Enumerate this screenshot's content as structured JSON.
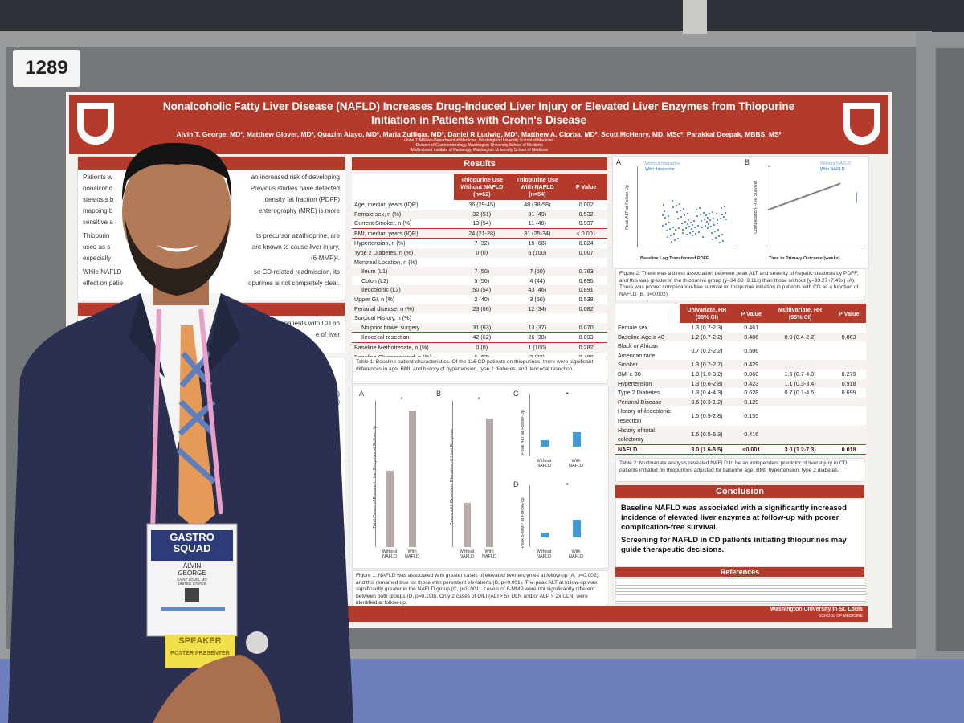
{
  "board_number": "1289",
  "poster": {
    "title": "Nonalcoholic Fatty Liver Disease (NAFLD) Increases Drug-Induced Liver Injury or Elevated Liver Enzymes from Thiopurine Initiation in Patients with Crohn's Disease",
    "authors": "Alvin T. George, MD¹, Matthew Glover, MD², Quazim Alayo, MD², Maria Zulfiqar, MD³, Daniel R Ludwig, MD³, Matthew A. Ciorba, MD², Scott McHenry, MD, MSc², Parakkal Deepak, MBBS, MS²",
    "affiliations": [
      "¹John T. Milliken Department of Medicine, Washington University School of Medicine",
      "²Division of Gastroenterology, Washington University School of Medicine",
      "³Mallinckrodt Institute of Radiology, Washington University School of Medicine"
    ],
    "intro": {
      "heading": "ction",
      "lines": [
        [
          "Patients w",
          "an increased risk of developing"
        ],
        [
          "nonalcoho",
          "Previous studies have detected"
        ],
        [
          "steatosis b",
          "density fat fraction (PDFF)"
        ],
        [
          "mapping b",
          "enterography (MRE) is more"
        ],
        [
          "sensitive a"
        ],
        [
          "Thiopurin",
          "ts precursor azathioprine, are"
        ],
        [
          "used as s",
          "are known to cause liver injury,"
        ],
        [
          "especially",
          "(6-MMP)²."
        ],
        [
          "While NAFLD",
          "se CD-related readmission, its"
        ],
        [
          "effect on patie",
          "opurines is not completely clear."
        ]
      ]
    },
    "aims": {
      "heading": "s",
      "lines": [
        "in patients with CD on",
        "e of liver"
      ]
    },
    "methods_fragments": [
      "(9)",
      "tis (4)",
      "follow-",
      "analyses,"
    ],
    "results_heading": "Results",
    "table1": {
      "header": [
        "Thiopurine Use Without NAFLD (n=62)",
        "Thiopurine Use With NAFLD (n=54)",
        "P Value"
      ],
      "rows": [
        [
          "Age, median years (IQR)",
          "36 (29-45)",
          "48 (38-58)",
          "0.002"
        ],
        [
          "Female sex, n (%)",
          "32 (51)",
          "31 (49)",
          "0.532"
        ],
        [
          "Current Smoker, n (%)",
          "13 (54)",
          "11 (46)",
          "0.937"
        ],
        [
          "BMI, median years (IQR)",
          "24 (21-28)",
          "31 (25-34)",
          "< 0.001"
        ],
        [
          "Hypertension, n (%)",
          "7 (32)",
          "15 (68)",
          "0.024"
        ],
        [
          "Type 2 Diabetes, n (%)",
          "0 (0)",
          "6 (100)",
          "0.007"
        ],
        [
          "Montreal Location, n (%)"
        ],
        [
          "Ileum (L1)",
          "7 (50)",
          "7 (50)",
          "0.783"
        ],
        [
          "Colon (L2)",
          "5 (56)",
          "4 (44)",
          "0.895"
        ],
        [
          "Ileocolonic (L3)",
          "50 (54)",
          "43 (46)",
          "0.891"
        ],
        [
          "Upper GI, n (%)",
          "2 (40)",
          "3 (60)",
          "0.538"
        ],
        [
          "Perianal disease, n (%)",
          "23 (66)",
          "12 (34)",
          "0.082"
        ],
        [
          "Surgical History, n (%)"
        ],
        [
          "No prior bowel surgery",
          "31 (63)",
          "13 (37)",
          "0.070"
        ],
        [
          "Ileocecal resection",
          "42 (62)",
          "26 (38)",
          "0.033"
        ],
        [
          "Baseline Methotrexate, n (%)",
          "0 (0)",
          "1 (100)",
          "0.282"
        ],
        [
          "Baseline Glucocorticoid, n (%)",
          "6 (67)",
          "3 (33)",
          "0.408"
        ]
      ],
      "caption": "Table 1: Baseline patient characteristics. Of the 116 CD patients on thiopurines, there were significant differences in age, BMI, and history of hypertension, type 2 diabetes, and ileocecal resection."
    },
    "figure1": {
      "panels": [
        {
          "letter": "A",
          "ylabel": "Total Cases of Elevated Liver Enzymes at Follow-Up"
        },
        {
          "letter": "B",
          "ylabel": "Cases with Persistent Elevation of Liver Enzymes"
        },
        {
          "letter": "C",
          "ylabel": "Peak ALT at Follow-Up"
        },
        {
          "letter": "D",
          "ylabel": "Peak 6-MMP at Follow-up"
        }
      ],
      "groups": [
        "Without NAFLD",
        "With NAFLD"
      ],
      "significance": "*",
      "caption": "Figure 1: NAFLD was associated with greater cases of elevated liver enzymes at follow-up (A, p=0.002), and this remained true for those with persistent elevations (B, p<0.001). The peak ALT at follow-up was significantly greater in the NAFLD group (C, p<0.001). Levels of 6-MMP were not significantly different between both groups (D, p=0.198). Only 2 cases of DILI (ALT> 5x ULN and/or ALP > 2x ULN) were identified at follow-up."
    },
    "figure2": {
      "a": {
        "letter": "A",
        "ylabel": "Peak ALT at Follow-Up",
        "xlabel": "Baseline Log-Transformed PDFF",
        "legend": [
          "Without thiopurine",
          "With thiopurine"
        ]
      },
      "b": {
        "letter": "B",
        "ylabel": "Complication-Free Survival",
        "xlabel": "Time to Primary Outcome (weeks)",
        "legend": [
          "Without NAFLD",
          "With NAFLD"
        ]
      },
      "caption": "Figure 2: There was a direct association between peak ALT and severity of hepatic steatosis by PDFF, and this was greater in the thiopurine group (y=34.68+9.11x) than those without (y=33.27+7.49x) (A). There was poorer complication-free survival on thiopurine initiation in patients with CD as a function of NAFLD (B, p=0.002)."
    },
    "table2": {
      "header": [
        "Univariate, HR (95% CI)",
        "P Value",
        "Multivariate, HR (95% CI)",
        "P Value"
      ],
      "rows": [
        [
          "Female sex",
          "1.3 (0.7-2.3)",
          "0.461"
        ],
        [
          "Baseline Age ≥ 40",
          "1.2 (0.7-2.2)",
          "0.486",
          "0.9 (0.4-2.2)",
          "0.863"
        ],
        [
          "Black or African American race",
          "0.7 (0.2-2.2)",
          "0.506"
        ],
        [
          "Smoker",
          "1.3 (0.7-2.7)",
          "0.429"
        ],
        [
          "BMI ≥ 30",
          "1.8 (1.0-3.2)",
          "0.060",
          "1.6 (0.7-4.0)",
          "0.279"
        ],
        [
          "Hypertension",
          "1.3 (0.6-2.8)",
          "0.423",
          "1.1 (0.3-3.4)",
          "0.918"
        ],
        [
          "Type 2 Diabetes",
          "1.3 (0.4-4.3)",
          "0.628",
          "0.7 (0.1-4.5)",
          "0.699"
        ],
        [
          "Perianal Disease",
          "0.6 (0.3-1.2)",
          "0.129"
        ],
        [
          "History of ileocolonic resection",
          "1.5 (0.9-2.8)",
          "0.155"
        ],
        [
          "History of total colectomy",
          "1.6 (0.5-5.3)",
          "0.416"
        ],
        [
          "NAFLD",
          "3.0 (1.6-5.5)",
          "<0.001",
          "3.0 (1.2-7.3)",
          "0.018"
        ]
      ],
      "caption": "Table 2: Multivariate analysis revealed NAFLD to be an independent predictor of liver injury in CD patients initiated on thiopurines adjusted for baseline age, BMI, hypertension, type 2 diabetes."
    },
    "conclusion": {
      "heading": "Conclusion",
      "points": [
        "Baseline NAFLD was associated with a significantly increased incidence of elevated liver enzymes at follow-up with poorer complication-free survival.",
        "Screening for NAFLD in CD patients initiating thiopurines may guide therapeutic decisions."
      ]
    },
    "references_heading": "References",
    "footer": [
      "Washington University in St. Louis",
      "SCHOOL OF MEDICINE"
    ]
  },
  "badge": {
    "program": [
      "GASTRO",
      "SQUAD"
    ],
    "name": [
      "ALVIN",
      "GEORGE"
    ],
    "location": [
      "SAINT LOUIS, MO",
      "UNITED STATES"
    ],
    "ribbons": [
      "SPEAKER",
      "POSTER PRESENTER"
    ]
  }
}
